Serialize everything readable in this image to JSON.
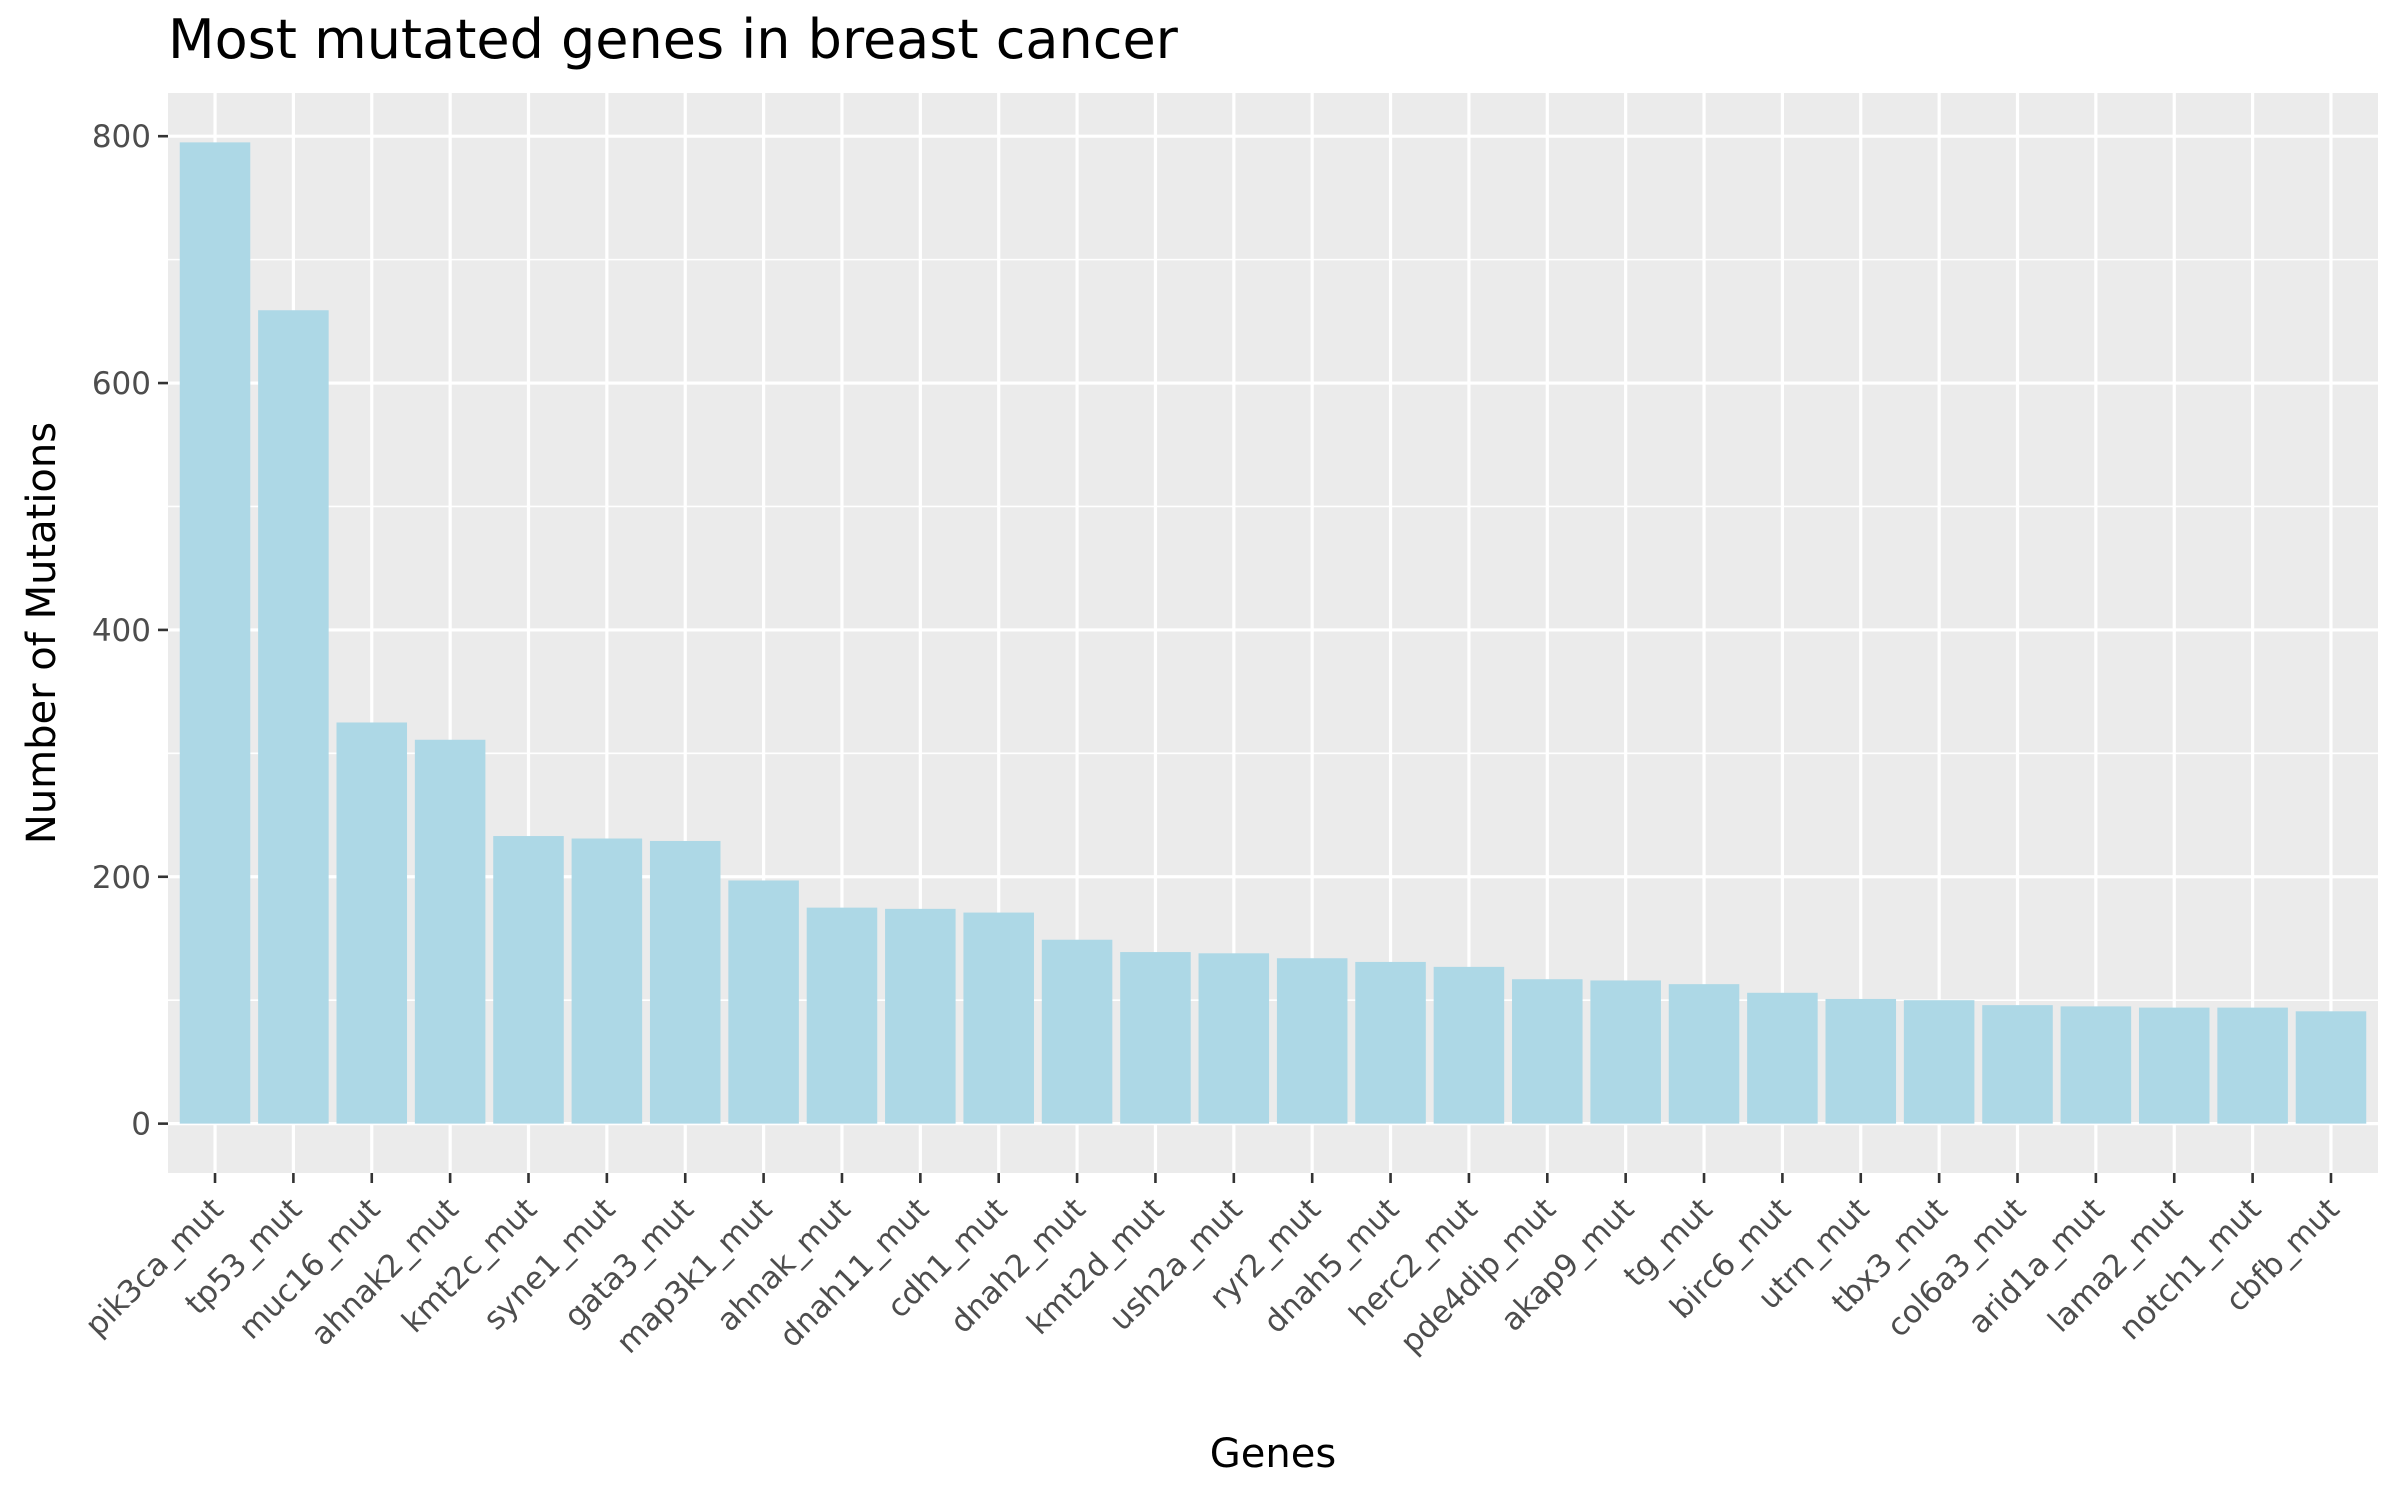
{
  "chart_data": {
    "type": "bar",
    "title": "Most mutated genes in breast cancer",
    "xlabel": "Genes",
    "ylabel": "Number of Mutations",
    "ylim": [
      -40,
      835
    ],
    "yticks": [
      0,
      200,
      400,
      600,
      800
    ],
    "grid": true,
    "bar_color": "#add8e6",
    "panel_color": "#ebebeb",
    "grid_color": "#ffffff",
    "categories": [
      "pik3ca_mut",
      "tp53_mut",
      "muc16_mut",
      "ahnak2_mut",
      "kmt2c_mut",
      "syne1_mut",
      "gata3_mut",
      "map3k1_mut",
      "ahnak_mut",
      "dnah11_mut",
      "cdh1_mut",
      "dnah2_mut",
      "kmt2d_mut",
      "ush2a_mut",
      "ryr2_mut",
      "dnah5_mut",
      "herc2_mut",
      "pde4dip_mut",
      "akap9_mut",
      "tg_mut",
      "birc6_mut",
      "utrn_mut",
      "tbx3_mut",
      "col6a3_mut",
      "arid1a_mut",
      "lama2_mut",
      "notch1_mut",
      "cbfb_mut"
    ],
    "values": [
      795,
      659,
      325,
      311,
      233,
      231,
      229,
      197,
      175,
      174,
      171,
      149,
      139,
      138,
      134,
      131,
      127,
      117,
      116,
      113,
      106,
      101,
      100,
      96,
      95,
      94,
      94,
      91
    ]
  }
}
